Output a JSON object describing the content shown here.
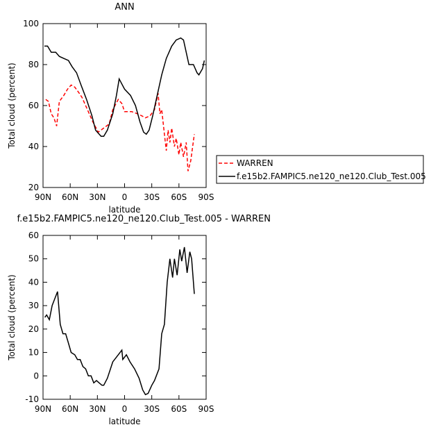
{
  "chart_data": [
    {
      "type": "line",
      "title": "ANN",
      "xlabel": "latitude",
      "ylabel": "Total cloud (percent)",
      "xlim": [
        90,
        -90
      ],
      "xticks": [
        {
          "value": 90,
          "label": "90N"
        },
        {
          "value": 60,
          "label": "60N"
        },
        {
          "value": 30,
          "label": "30N"
        },
        0,
        {
          "value": -30,
          "label": "30S"
        },
        {
          "value": -60,
          "label": "60S"
        },
        {
          "value": -90,
          "label": "90S"
        }
      ],
      "ylim": [
        20,
        100
      ],
      "yticks": [
        20,
        40,
        60,
        80,
        100
      ],
      "legend": "right",
      "series": [
        {
          "name": "WARREN",
          "color": "#ff0000",
          "linestyle": "dashed",
          "x": [
            87,
            84,
            81,
            78,
            75,
            72,
            67,
            63,
            59,
            55,
            50,
            47,
            41,
            35,
            29,
            23,
            17,
            13,
            7,
            3,
            0,
            -8,
            -14,
            -19,
            -23,
            -28,
            -33,
            -37,
            -39,
            -41,
            -44,
            -46,
            -48,
            -50,
            -52,
            -55,
            -57,
            -60,
            -62,
            -65,
            -68,
            -70,
            -73,
            -77
          ],
          "values": [
            63,
            62,
            56,
            54,
            50,
            62,
            65,
            68,
            70,
            69,
            66,
            64,
            58,
            52,
            47,
            49,
            51,
            58,
            63,
            61,
            57,
            57,
            56,
            55,
            54,
            55,
            58,
            66,
            56,
            58,
            46,
            38,
            48,
            42,
            49,
            40,
            44,
            36,
            42,
            35,
            42,
            28,
            33,
            46
          ]
        },
        {
          "name": "f.e15b2.FAMPIC5.ne120_ne120.Club_Test.005",
          "color": "#000000",
          "linestyle": "solid",
          "x": [
            88.5,
            85,
            81,
            76,
            72,
            67,
            62,
            58,
            53,
            48,
            42,
            36,
            32,
            26,
            23,
            19,
            13,
            9,
            6,
            0,
            -6.5,
            -12,
            -17,
            -21,
            -24,
            -27,
            -31,
            -36,
            -41,
            -46,
            -52,
            -57,
            -62,
            -65,
            -68,
            -71,
            -76,
            -80,
            -82,
            -86,
            -88
          ],
          "values": [
            89,
            89,
            86,
            86,
            84,
            83,
            82,
            79,
            76,
            70,
            63,
            55,
            48,
            45,
            45,
            48,
            56,
            65,
            73,
            68,
            65,
            60,
            52,
            47,
            46,
            48,
            55,
            65,
            75,
            83,
            89,
            92,
            93,
            92,
            86,
            80,
            80,
            76,
            75,
            78,
            82
          ]
        }
      ]
    },
    {
      "type": "line",
      "title": "f.e15b2.FAMPIC5.ne120_ne120.Club_Test.005 - WARREN",
      "xlabel": "latitude",
      "ylabel": "Total cloud (percent)",
      "xlim": [
        90,
        -90
      ],
      "xticks": [
        {
          "value": 90,
          "label": "90N"
        },
        {
          "value": 60,
          "label": "60N"
        },
        {
          "value": 30,
          "label": "30N"
        },
        0,
        {
          "value": -30,
          "label": "30S"
        },
        {
          "value": -60,
          "label": "60S"
        },
        {
          "value": -90,
          "label": "90S"
        }
      ],
      "ylim": [
        -10,
        60
      ],
      "yticks": [
        -10,
        0,
        10,
        20,
        30,
        40,
        50,
        60
      ],
      "series": [
        {
          "color": "#000000",
          "linestyle": "solid",
          "x": [
            88,
            86,
            83,
            80,
            77,
            74,
            71,
            68,
            65,
            62,
            59,
            55,
            52,
            49,
            46,
            43,
            40,
            37,
            34,
            31,
            28,
            25,
            23,
            19,
            13,
            7,
            3,
            2,
            -2,
            -6,
            -11,
            -16,
            -20,
            -23,
            -26,
            -30,
            -33,
            -38,
            -41,
            -44,
            -47,
            -50,
            -53,
            -55,
            -58,
            -61,
            -63,
            -66,
            -69,
            -72,
            -74,
            -77
          ],
          "values": [
            25,
            26,
            24,
            30,
            33,
            36,
            22,
            18,
            18,
            14,
            10,
            9,
            7,
            7,
            4,
            3,
            0,
            0,
            -3,
            -2,
            -3,
            -4,
            -4,
            -1,
            6,
            9,
            11,
            7,
            9,
            6,
            3,
            -1,
            -6,
            -8,
            -7.5,
            -4,
            -2,
            3,
            18,
            22,
            40,
            50,
            42,
            50,
            43,
            54,
            49,
            55,
            44,
            53,
            50,
            35
          ]
        }
      ]
    }
  ]
}
